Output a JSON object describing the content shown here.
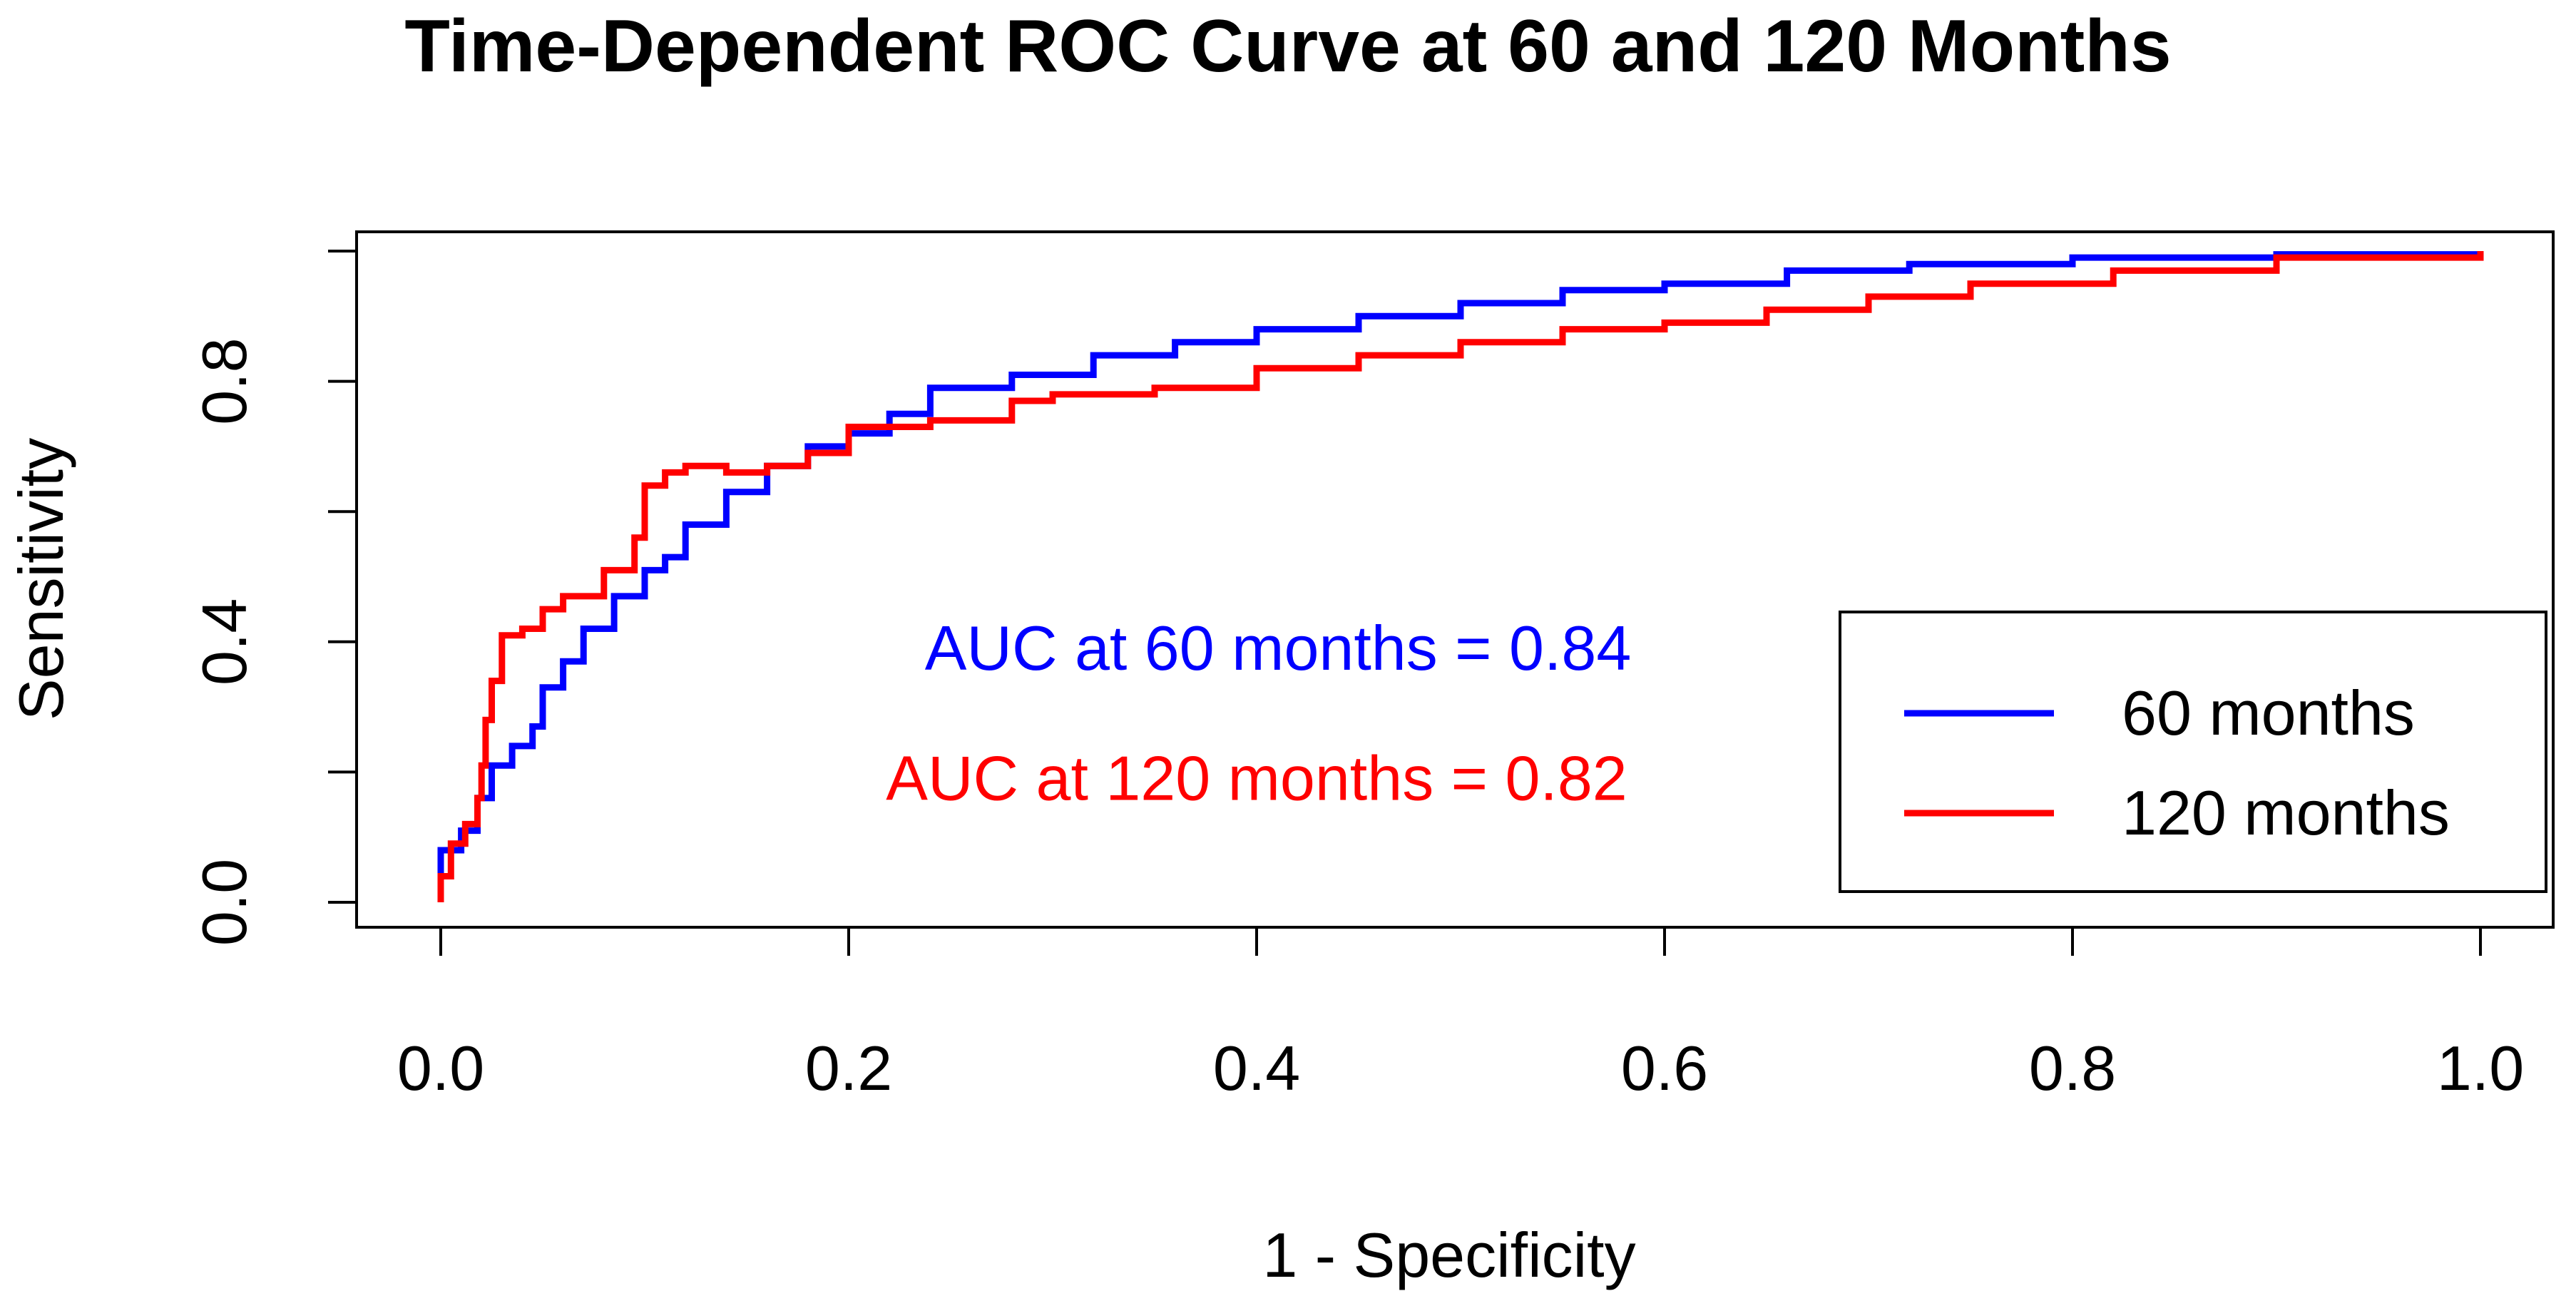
{
  "chart_data": {
    "type": "line",
    "title": "Time-Dependent ROC Curve at 60 and 120 Months",
    "xlabel": "1 - Specificity",
    "ylabel": "Sensitivity",
    "xlim": [
      0,
      1
    ],
    "ylim": [
      0,
      1
    ],
    "xticks": [
      0.0,
      0.2,
      0.4,
      0.6,
      0.8,
      1.0
    ],
    "xtick_labels": [
      "0.0",
      "0.2",
      "0.4",
      "0.6",
      "0.8",
      "1.0"
    ],
    "yticks": [
      0.0,
      0.2,
      0.4,
      0.6,
      0.8,
      1.0
    ],
    "ytick_labels": [
      "0.0",
      "",
      "0.4",
      "",
      "0.8",
      ""
    ],
    "grid": false,
    "legend_position": "bottom-right",
    "annotations": [
      {
        "text": "AUC at 60 months = 0.84",
        "color": "#0000ff",
        "x": 0.4,
        "y": 0.39
      },
      {
        "text": "AUC at 120 months = 0.82",
        "color": "#ff0000",
        "x": 0.4,
        "y": 0.19
      }
    ],
    "series": [
      {
        "name": "60 months",
        "color": "#0000ff",
        "points": [
          [
            0.0,
            0.0
          ],
          [
            0.0,
            0.08
          ],
          [
            0.01,
            0.11
          ],
          [
            0.018,
            0.16
          ],
          [
            0.025,
            0.21
          ],
          [
            0.035,
            0.24
          ],
          [
            0.045,
            0.27
          ],
          [
            0.05,
            0.33
          ],
          [
            0.06,
            0.37
          ],
          [
            0.07,
            0.42
          ],
          [
            0.085,
            0.47
          ],
          [
            0.1,
            0.51
          ],
          [
            0.11,
            0.53
          ],
          [
            0.12,
            0.58
          ],
          [
            0.14,
            0.63
          ],
          [
            0.16,
            0.67
          ],
          [
            0.18,
            0.7
          ],
          [
            0.2,
            0.72
          ],
          [
            0.22,
            0.75
          ],
          [
            0.24,
            0.79
          ],
          [
            0.28,
            0.81
          ],
          [
            0.32,
            0.84
          ],
          [
            0.36,
            0.86
          ],
          [
            0.4,
            0.88
          ],
          [
            0.45,
            0.9
          ],
          [
            0.5,
            0.92
          ],
          [
            0.55,
            0.94
          ],
          [
            0.6,
            0.95
          ],
          [
            0.66,
            0.97
          ],
          [
            0.72,
            0.98
          ],
          [
            0.8,
            0.99
          ],
          [
            0.9,
            0.995
          ],
          [
            1.0,
            1.0
          ]
        ]
      },
      {
        "name": "120 months",
        "color": "#ff0000",
        "points": [
          [
            0.0,
            0.0
          ],
          [
            0.0,
            0.04
          ],
          [
            0.005,
            0.09
          ],
          [
            0.012,
            0.12
          ],
          [
            0.018,
            0.16
          ],
          [
            0.02,
            0.21
          ],
          [
            0.022,
            0.28
          ],
          [
            0.025,
            0.34
          ],
          [
            0.03,
            0.41
          ],
          [
            0.04,
            0.42
          ],
          [
            0.05,
            0.45
          ],
          [
            0.06,
            0.47
          ],
          [
            0.08,
            0.51
          ],
          [
            0.095,
            0.56
          ],
          [
            0.1,
            0.64
          ],
          [
            0.11,
            0.66
          ],
          [
            0.12,
            0.67
          ],
          [
            0.14,
            0.66
          ],
          [
            0.16,
            0.67
          ],
          [
            0.18,
            0.69
          ],
          [
            0.2,
            0.73
          ],
          [
            0.24,
            0.74
          ],
          [
            0.28,
            0.77
          ],
          [
            0.3,
            0.78
          ],
          [
            0.35,
            0.79
          ],
          [
            0.4,
            0.82
          ],
          [
            0.45,
            0.84
          ],
          [
            0.5,
            0.86
          ],
          [
            0.55,
            0.88
          ],
          [
            0.6,
            0.89
          ],
          [
            0.65,
            0.91
          ],
          [
            0.7,
            0.93
          ],
          [
            0.75,
            0.95
          ],
          [
            0.82,
            0.97
          ],
          [
            0.9,
            0.99
          ],
          [
            1.0,
            1.0
          ]
        ]
      }
    ]
  }
}
